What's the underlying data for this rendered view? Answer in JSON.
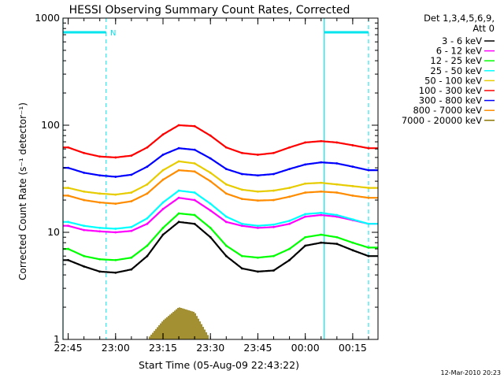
{
  "chart_data": {
    "type": "line",
    "title": "HESSI Observing Summary Count Rates, Corrected",
    "xlabel": "Start Time (05-Aug-09 22:43:22)",
    "ylabel": "Corrected Count Rate (s⁻¹ detector⁻¹)",
    "yscale": "log",
    "ylim": [
      1,
      1000
    ],
    "xlim": [
      "22:43:22",
      "00:23:00"
    ],
    "x_ticks": [
      "22:45",
      "23:00",
      "23:15",
      "23:30",
      "23:45",
      "00:00",
      "00:15"
    ],
    "y_ticks": [
      "1",
      "10",
      "100",
      "1000"
    ],
    "legend_header": [
      "Det 1,3,4,5,6,9,",
      "Att 0"
    ],
    "legend_position": "outside-right",
    "footer_date": "12-Mar-2010 20:23",
    "night_marker_label": "N",
    "markers": {
      "solid": [
        "22:43:22",
        "00:06"
      ],
      "dashed": [
        "22:57",
        "00:20"
      ],
      "bars": [
        [
          "22:43:22",
          "22:57"
        ],
        [
          "00:06",
          "00:20"
        ]
      ]
    },
    "times": [
      "22:45",
      "22:50",
      "22:55",
      "23:00",
      "23:05",
      "23:10",
      "23:15",
      "23:20",
      "23:25",
      "23:30",
      "23:35",
      "23:40",
      "23:45",
      "23:50",
      "23:55",
      "00:00",
      "00:05",
      "00:10",
      "00:15",
      "00:20"
    ],
    "series": [
      {
        "name": "3 - 6 keV",
        "color": "#000000",
        "values": [
          5.5,
          4.8,
          4.3,
          4.2,
          4.5,
          6.0,
          9.5,
          12.5,
          12.0,
          9.0,
          6.0,
          4.6,
          4.3,
          4.4,
          5.5,
          7.5,
          8.0,
          7.8,
          6.8,
          6.0
        ]
      },
      {
        "name": "6 - 12 keV",
        "color": "#ff00ff",
        "values": [
          11.5,
          10.5,
          10.2,
          10.0,
          10.3,
          12.0,
          16.5,
          21.0,
          20.0,
          16.0,
          12.5,
          11.5,
          11.0,
          11.2,
          12.0,
          14.0,
          14.5,
          14.0,
          13.0,
          12.0
        ]
      },
      {
        "name": "12 - 25 keV",
        "color": "#00ff00",
        "values": [
          7.0,
          6.0,
          5.6,
          5.5,
          5.8,
          7.5,
          11.0,
          15.0,
          14.5,
          11.0,
          7.5,
          6.0,
          5.8,
          6.0,
          7.0,
          9.0,
          9.5,
          9.0,
          8.0,
          7.2
        ]
      },
      {
        "name": "25 - 50 keV",
        "color": "#00ffff",
        "values": [
          12.5,
          11.5,
          11.0,
          10.8,
          11.2,
          13.5,
          19.0,
          24.5,
          23.5,
          18.5,
          14.0,
          12.0,
          11.5,
          11.8,
          12.8,
          14.8,
          15.2,
          14.5,
          13.2,
          12.0
        ]
      },
      {
        "name": "50 - 100 keV",
        "color": "#e6cc00",
        "values": [
          26.0,
          24.0,
          23.0,
          22.5,
          23.5,
          28.0,
          38.0,
          46.0,
          44.0,
          36.0,
          28.0,
          25.0,
          24.0,
          24.5,
          26.0,
          28.5,
          29.0,
          28.0,
          27.0,
          26.0
        ]
      },
      {
        "name": "100 - 300 keV",
        "color": "#ff0000",
        "values": [
          62.0,
          55.0,
          51.0,
          50.0,
          52.0,
          62.0,
          82.0,
          100.0,
          98.0,
          80.0,
          62.0,
          55.0,
          53.0,
          55.0,
          62.0,
          69.0,
          71.0,
          69.0,
          65.0,
          61.0
        ]
      },
      {
        "name": "300 - 800 keV",
        "color": "#0000ff",
        "values": [
          40.0,
          36.0,
          34.0,
          33.0,
          34.5,
          41.0,
          53.0,
          61.0,
          59.0,
          49.0,
          39.0,
          35.0,
          34.0,
          35.0,
          39.0,
          43.0,
          45.0,
          44.0,
          41.0,
          38.0
        ]
      },
      {
        "name": "800 - 7000 keV",
        "color": "#ff8c00",
        "values": [
          22.0,
          20.0,
          19.0,
          18.5,
          19.5,
          23.0,
          31.0,
          38.0,
          37.0,
          30.0,
          23.0,
          20.5,
          19.8,
          20.0,
          21.5,
          23.5,
          24.0,
          23.5,
          22.0,
          21.0
        ]
      },
      {
        "name": "7000 - 20000 keV",
        "color": "#8b7500",
        "values": [
          1.0,
          1.0,
          1.0,
          1.0,
          1.0,
          1.0,
          1.5,
          2.0,
          1.8,
          1.0,
          1.0,
          1.0,
          1.0,
          1.0,
          1.0,
          1.0,
          1.0,
          1.0,
          1.0,
          1.0
        ]
      }
    ]
  }
}
